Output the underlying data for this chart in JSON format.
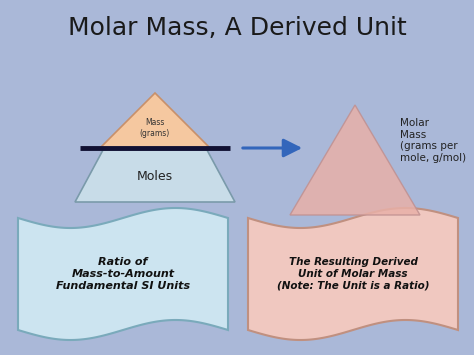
{
  "title": "Molar Mass, A Derived Unit",
  "title_fontsize": 18,
  "title_color": "#1a1a1a",
  "bg_color": "#aab8d8",
  "triangle_top_fill": "#f5c8a0",
  "triangle_top_stroke": "#c8906a",
  "triangle_bottom_fill": "#c8dce8",
  "triangle_bottom_stroke": "#7a9aaa",
  "triangle_right_fill": "#e8b0a8",
  "triangle_right_stroke": "#c09090",
  "banner_left_fill": "#cce4f0",
  "banner_left_stroke": "#7aaabb",
  "banner_right_fill": "#f0c8c0",
  "banner_right_stroke": "#c09080",
  "arrow_color": "#3366bb",
  "label_mass": "Mass\n(grams)",
  "label_moles": "Moles",
  "label_molar_mass": "Molar\nMass\n(grams per\nmole, g/mol)",
  "label_ratio": "Ratio of\nMass-to-Amount\nFundamental SI Units",
  "label_result": "The Resulting Derived\nUnit of Molar Mass\n(Note: The Unit is a Ratio)",
  "line_color": "#111133",
  "line_width": 3.5
}
